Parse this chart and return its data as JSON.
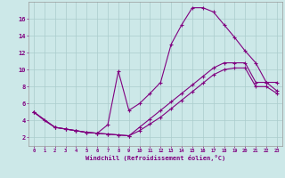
{
  "xlabel": "Windchill (Refroidissement éolien,°C)",
  "background_color": "#cce8e8",
  "line_color": "#800080",
  "grid_color": "#aacccc",
  "xlim": [
    -0.5,
    23.5
  ],
  "ylim": [
    1.0,
    18.0
  ],
  "xticks": [
    0,
    1,
    2,
    3,
    4,
    5,
    6,
    7,
    8,
    9,
    10,
    11,
    12,
    13,
    14,
    15,
    16,
    17,
    18,
    19,
    20,
    21,
    22,
    23
  ],
  "yticks": [
    2,
    4,
    6,
    8,
    10,
    12,
    14,
    16
  ],
  "curve1_x": [
    0,
    1,
    2,
    3,
    4,
    5,
    6,
    7,
    8,
    9,
    10,
    11,
    12,
    13,
    14,
    15,
    16,
    17,
    18,
    19,
    20,
    21,
    22,
    23
  ],
  "curve1_y": [
    5.0,
    4.0,
    3.2,
    3.0,
    2.8,
    2.6,
    2.5,
    3.5,
    9.8,
    5.2,
    6.0,
    7.2,
    8.5,
    13.0,
    15.3,
    17.3,
    17.3,
    16.8,
    15.3,
    13.8,
    12.2,
    10.8,
    8.5,
    8.5
  ],
  "curve2_x": [
    0,
    2,
    3,
    4,
    5,
    6,
    7,
    8,
    9,
    10,
    11,
    12,
    13,
    14,
    15,
    16,
    17,
    18,
    19,
    20,
    21,
    22,
    23
  ],
  "curve2_y": [
    5.0,
    3.2,
    3.0,
    2.8,
    2.6,
    2.5,
    2.4,
    2.3,
    2.2,
    3.2,
    4.2,
    5.2,
    6.2,
    7.2,
    8.2,
    9.2,
    10.2,
    10.8,
    10.8,
    10.8,
    8.5,
    8.5,
    7.5
  ],
  "curve3_x": [
    0,
    2,
    3,
    4,
    5,
    6,
    7,
    8,
    9,
    10,
    11,
    12,
    13,
    14,
    15,
    16,
    17,
    18,
    19,
    20,
    21,
    22,
    23
  ],
  "curve3_y": [
    5.0,
    3.2,
    3.0,
    2.8,
    2.6,
    2.5,
    2.4,
    2.3,
    2.2,
    2.8,
    3.6,
    4.4,
    5.4,
    6.4,
    7.4,
    8.4,
    9.4,
    10.0,
    10.2,
    10.2,
    8.0,
    8.0,
    7.2
  ]
}
